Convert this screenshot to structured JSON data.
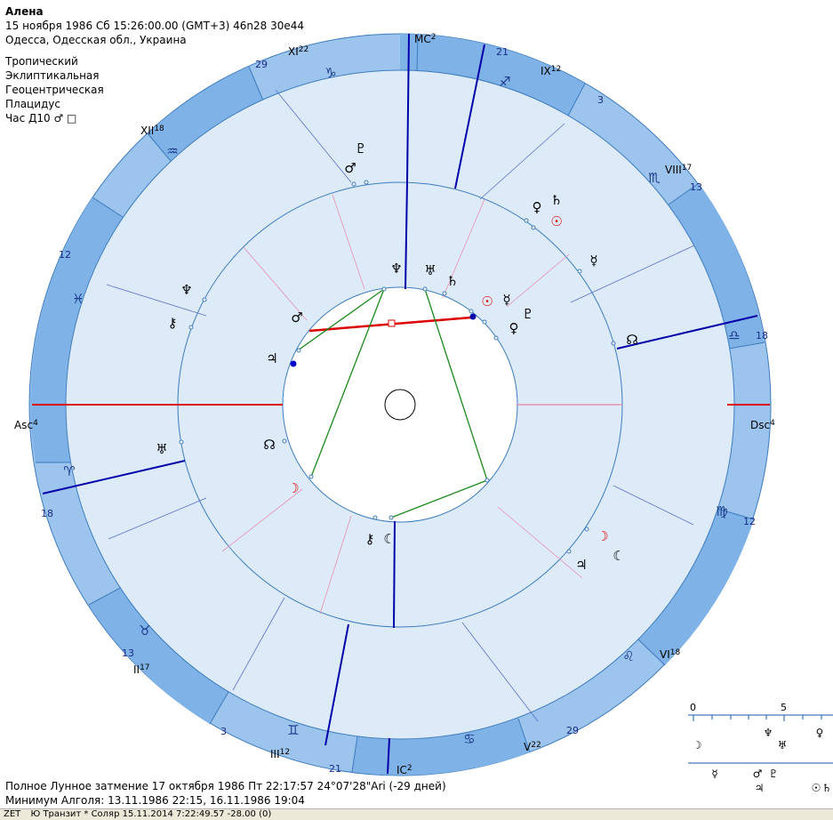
{
  "header": {
    "name": "Алена",
    "datetime": "15 ноября 1986  Сб  15:26:00.00 (GMT+3) 46n28  30e44",
    "place": "Одесса, Одесская обл., Украина",
    "settings": [
      "Тропический",
      "Эклиптикальная",
      "Геоцентрическая",
      "Плацидус",
      "Час Д10  ♂ □"
    ]
  },
  "angles": {
    "mc": "MC",
    "mc_sup": "2",
    "ic": "IC",
    "ic_sup": "2",
    "asc": "Asc",
    "asc_sup": "4",
    "dsc": "Dsc",
    "dsc_sup": "4"
  },
  "houses": [
    {
      "label": "XI",
      "sup": "22"
    },
    {
      "label": "IX",
      "sup": "12"
    },
    {
      "label": "VIII",
      "sup": "17"
    },
    {
      "label": "XII",
      "sup": "18"
    },
    {
      "label": "II",
      "sup": "17"
    },
    {
      "label": "III",
      "sup": "12"
    },
    {
      "label": "V",
      "sup": "22"
    },
    {
      "label": "VI",
      "sup": "18"
    }
  ],
  "degrees": [
    "29",
    "21",
    "3",
    "13",
    "12",
    "18",
    "18",
    "12",
    "13",
    "3",
    "21",
    "29"
  ],
  "zodiac": [
    "♑",
    "♐",
    "♏",
    "♎",
    "♍",
    "♌",
    "♋",
    "♊",
    "♉",
    "♈",
    "♓",
    "♒"
  ],
  "natal_planets": [
    "♇",
    "♂",
    "♀",
    "♄",
    "☉",
    "☿",
    "♅",
    "♆",
    "☊",
    "☽",
    "☾",
    "♃",
    "♆",
    "⚷"
  ],
  "transit_planets": [
    "♆",
    "♅",
    "♄",
    "☉",
    "☿",
    "♇",
    "♀",
    "♂",
    "♃",
    "♅",
    "☊",
    "☽",
    "⚷",
    "☾"
  ],
  "scale": {
    "start": "0",
    "mid": "5",
    "row1": [
      "☽",
      "♆",
      "♅",
      "♀"
    ],
    "row2": [
      "☿",
      "♂",
      "♃",
      "♇",
      "☉",
      "♄"
    ]
  },
  "footer": {
    "eclipse": "Полное Лунное затмение 17 октября 1986 Пт 22:17:57 24°07'28\"Ari (-29 дней)",
    "algol": "Минимум Алголя: 13.11.1986 22:15,  16.11.1986 19:04"
  },
  "statusbar": [
    "ZET",
    "Ю Транзит  * Соляр  15.11.2014  7:22:49.57  -28.00 (0)"
  ],
  "colors": {
    "ring": "#9cc4ec",
    "ring_dark": "#7fb2e6",
    "field": "#ddeaf8",
    "stroke": "#3d7cbf",
    "red": "#dd0000",
    "green": "#1a8a1a",
    "blue": "#0000aa"
  }
}
